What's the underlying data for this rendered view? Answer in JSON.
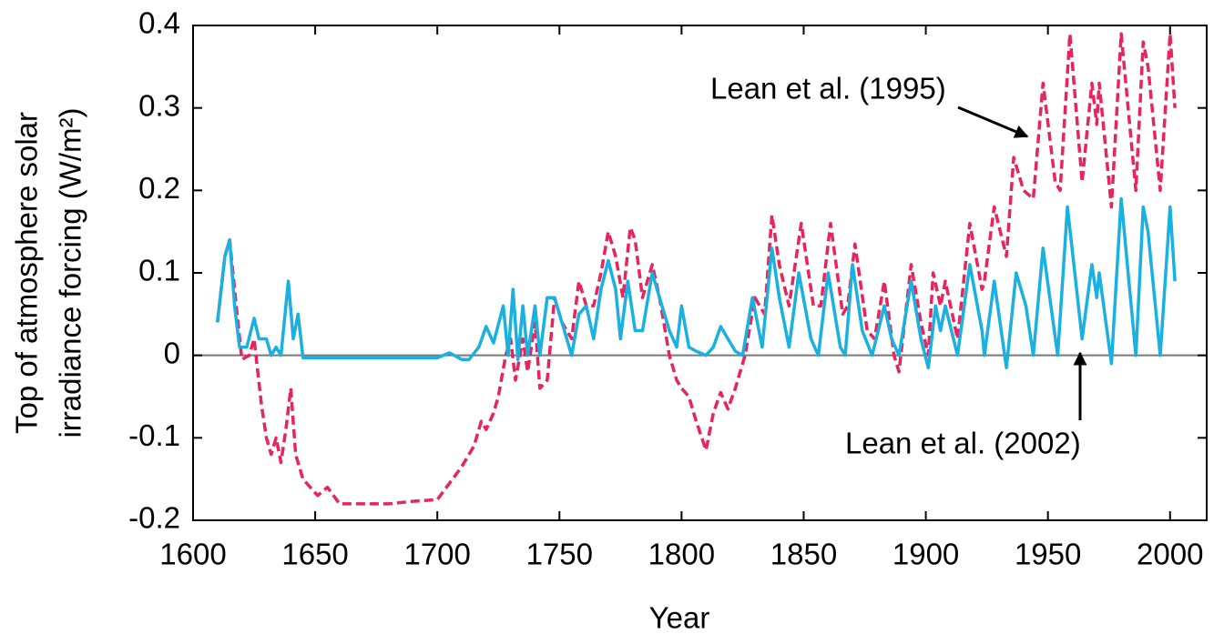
{
  "chart_data": {
    "type": "line",
    "xlabel": "Year",
    "ylabel": [
      "Top of atmosphere solar",
      "irradiance forcing (W/m²)"
    ],
    "xlim": [
      1600,
      2015
    ],
    "ylim": [
      -0.2,
      0.4
    ],
    "xticks": [
      1600,
      1650,
      1700,
      1750,
      1800,
      1850,
      1900,
      1950,
      2000
    ],
    "yticks": [
      -0.2,
      -0.1,
      0,
      0.1,
      0.2,
      0.3,
      0.4
    ],
    "hline": 0,
    "series": [
      {
        "name": "Lean et al. (1995)",
        "color": "#e8245e",
        "dash": true,
        "x": [
          1610,
          1613,
          1615,
          1618,
          1620,
          1623,
          1625,
          1628,
          1630,
          1632,
          1634,
          1636,
          1638,
          1640,
          1642,
          1645,
          1648,
          1651,
          1655,
          1660,
          1670,
          1680,
          1690,
          1700,
          1705,
          1710,
          1715,
          1718,
          1720,
          1723,
          1725,
          1728,
          1730,
          1732,
          1735,
          1737,
          1740,
          1742,
          1745,
          1748,
          1751,
          1755,
          1758,
          1761,
          1764,
          1767,
          1770,
          1773,
          1776,
          1779,
          1781,
          1784,
          1788,
          1791,
          1795,
          1798,
          1800,
          1803,
          1806,
          1810,
          1813,
          1816,
          1819,
          1822,
          1826,
          1830,
          1834,
          1837,
          1840,
          1844,
          1849,
          1854,
          1857,
          1861,
          1866,
          1868,
          1871,
          1876,
          1879,
          1883,
          1887,
          1889,
          1894,
          1898,
          1901,
          1903,
          1906,
          1908,
          1913,
          1918,
          1923,
          1924,
          1928,
          1933,
          1936,
          1940,
          1944,
          1948,
          1953,
          1955,
          1959,
          1964,
          1968,
          1970,
          1971,
          1976,
          1980,
          1986,
          1989,
          1991,
          1996,
          2000,
          2002
        ],
        "values": [
          0.04,
          0.12,
          0.14,
          0.05,
          -0.005,
          0,
          0.02,
          -0.06,
          -0.1,
          -0.12,
          -0.1,
          -0.13,
          -0.09,
          -0.04,
          -0.12,
          -0.15,
          -0.16,
          -0.17,
          -0.16,
          -0.18,
          -0.18,
          -0.18,
          -0.177,
          -0.175,
          -0.155,
          -0.135,
          -0.11,
          -0.08,
          -0.09,
          -0.07,
          -0.05,
          0,
          0.02,
          -0.03,
          0.02,
          -0.02,
          0.04,
          -0.04,
          -0.03,
          0.07,
          0.04,
          0.02,
          0.09,
          0.06,
          0.06,
          0.1,
          0.15,
          0.12,
          0.07,
          0.155,
          0.14,
          0.07,
          0.11,
          0.07,
          0,
          -0.03,
          -0.04,
          -0.05,
          -0.08,
          -0.115,
          -0.07,
          -0.045,
          -0.065,
          -0.04,
          0,
          0.07,
          0.05,
          0.17,
          0.11,
          0.06,
          0.16,
          0.06,
          0.06,
          0.16,
          0.05,
          0.06,
          0.135,
          0.03,
          0.02,
          0.09,
          0,
          -0.02,
          0.11,
          0.04,
          0,
          0.1,
          0.06,
          0.09,
          0.02,
          0.16,
          0.08,
          0.09,
          0.18,
          0.12,
          0.24,
          0.2,
          0.19,
          0.33,
          0.21,
          0.2,
          0.39,
          0.21,
          0.33,
          0.28,
          0.33,
          0.18,
          0.39,
          0.2,
          0.38,
          0.35,
          0.2,
          0.39,
          0.3
        ]
      },
      {
        "name": "Lean et al. (2002)",
        "color": "#1ab0e0",
        "dash": false,
        "x": [
          1610,
          1613,
          1615,
          1617,
          1619,
          1622,
          1625,
          1627,
          1630,
          1632,
          1634,
          1636,
          1639,
          1641,
          1643,
          1645,
          1650,
          1700,
          1705,
          1710,
          1713,
          1717,
          1720,
          1723,
          1727,
          1729,
          1731,
          1733,
          1735,
          1737,
          1740,
          1742,
          1745,
          1748,
          1752,
          1755,
          1758,
          1761,
          1764,
          1767,
          1770,
          1773,
          1775,
          1778,
          1781,
          1784,
          1788,
          1791,
          1795,
          1798,
          1800,
          1803,
          1806,
          1810,
          1813,
          1816,
          1819,
          1822,
          1825,
          1829,
          1833,
          1837,
          1840,
          1844,
          1848,
          1853,
          1856,
          1860,
          1865,
          1867,
          1870,
          1874,
          1878,
          1883,
          1886,
          1889,
          1894,
          1898,
          1901,
          1904,
          1906,
          1908,
          1913,
          1918,
          1923,
          1924,
          1928,
          1933,
          1937,
          1941,
          1944,
          1948,
          1954,
          1958,
          1964,
          1968,
          1970,
          1971,
          1976,
          1980,
          1986,
          1989,
          1991,
          1996,
          2000,
          2002
        ],
        "values": [
          0.04,
          0.12,
          0.14,
          0.06,
          0.01,
          0.01,
          0.045,
          0.02,
          0.02,
          0,
          0.01,
          0,
          0.09,
          0.02,
          0.05,
          -0.003,
          -0.003,
          -0.003,
          0.003,
          -0.005,
          -0.005,
          0.01,
          0.035,
          0.015,
          0.06,
          0,
          0.08,
          -0.005,
          0.06,
          0,
          0.06,
          0,
          0.07,
          0.07,
          0.03,
          0,
          0.05,
          0.06,
          0.02,
          0.08,
          0.115,
          0.08,
          0.02,
          0.09,
          0.03,
          0.03,
          0.1,
          0.07,
          0.03,
          0.01,
          0.06,
          0.01,
          0.005,
          0,
          0.01,
          0.035,
          0.02,
          0.005,
          0,
          0.07,
          0.01,
          0.13,
          0.07,
          0.01,
          0.1,
          0.02,
          0,
          0.1,
          0.01,
          0,
          0.11,
          0.03,
          0,
          0.06,
          0.02,
          0,
          0.09,
          0.02,
          -0.015,
          0.06,
          0.03,
          0.06,
          0,
          0.11,
          0.03,
          0,
          0.09,
          -0.015,
          0.1,
          0.06,
          0,
          0.13,
          0,
          0.18,
          0.02,
          0.11,
          0.07,
          0.1,
          -0.01,
          0.19,
          0,
          0.18,
          0.15,
          0,
          0.18,
          0.09
        ]
      }
    ]
  }
}
